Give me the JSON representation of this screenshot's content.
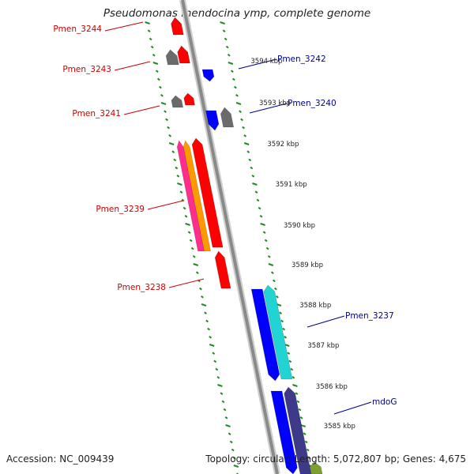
{
  "title": "Pseudomonas mendocina ymp, complete genome",
  "footer": {
    "accession_label": "Accession:",
    "accession": "NC_009439",
    "topology_label": "Topology:",
    "topology": "circular;",
    "length_label": "Length:",
    "length": "5,072,807 bp;",
    "genes_label": "Genes:",
    "genes": "4,675"
  },
  "colors": {
    "red": "#ff0000",
    "blue": "#0000ff",
    "gray": "#6b6b6b",
    "cyan": "#22d3d3",
    "navy": "#3d3a8a",
    "pink": "#ff2d8c",
    "orange": "#ff9900",
    "olive": "#7da030",
    "tick_green": "#228b22",
    "label_red": "#cc0000",
    "label_blue": "#00008b"
  },
  "scale_labels": [
    "3594 kbp",
    "3593 kbp",
    "3592 kbp",
    "3591 kbp",
    "3590 kbp",
    "3589 kbp",
    "3588 kbp",
    "3587 kbp",
    "3586 kbp",
    "3585 kbp"
  ],
  "genes": [
    {
      "name": "Pmen_3244",
      "strand": "left"
    },
    {
      "name": "Pmen_3243",
      "strand": "left"
    },
    {
      "name": "Pmen_3242",
      "strand": "right"
    },
    {
      "name": "Pmen_3241",
      "strand": "left"
    },
    {
      "name": "Pmen_3240",
      "strand": "right"
    },
    {
      "name": "Pmen_3239",
      "strand": "left"
    },
    {
      "name": "Pmen_3238",
      "strand": "left"
    },
    {
      "name": "Pmen_3237",
      "strand": "right"
    },
    {
      "name": "mdoG",
      "strand": "right"
    }
  ]
}
